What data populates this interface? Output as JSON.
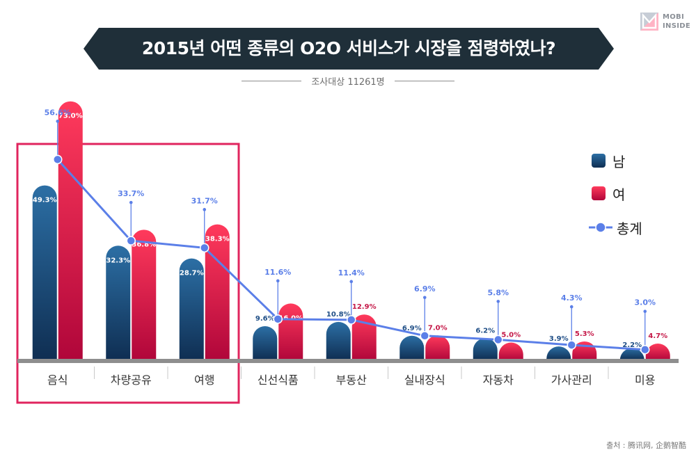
{
  "title": "2015년 어떤 종류의 O2O 서비스가 시장을 점령하였나?",
  "subtitle": "조사대상 11261명",
  "logo": {
    "line1": "MOBI",
    "line2": "INSIDE"
  },
  "source": "출처 : 腾讯网, 企鹅智酷",
  "colors": {
    "male_top": "#2c6fa5",
    "male_bottom": "#0f2e52",
    "female_top": "#ff3a5c",
    "female_bottom": "#b0063a",
    "total": "#5b7fe8",
    "highlight": "#e0245e",
    "male_label": "#1f4e86",
    "female_label": "#c41646"
  },
  "chart_data": {
    "type": "bar",
    "title": "2015년 어떤 종류의 O2O 서비스가 시장을 점령하였나?",
    "subtitle": "조사대상 11261명",
    "categories": [
      "음식",
      "차량공유",
      "여행",
      "신선식품",
      "부동산",
      "실내장식",
      "자동차",
      "가사관리",
      "미용"
    ],
    "series": [
      {
        "name": "남",
        "values": [
          49.3,
          32.3,
          28.7,
          9.6,
          10.8,
          6.9,
          6.2,
          3.9,
          2.2
        ],
        "labels": [
          "49.3%",
          "32.3%",
          "28.7%",
          "9.6%",
          "10.8%",
          "6.9%",
          "6.2%",
          "3.9%",
          "2.2%"
        ]
      },
      {
        "name": "여",
        "values": [
          73.0,
          36.8,
          38.3,
          16.0,
          12.9,
          7.0,
          5.0,
          5.3,
          4.7
        ],
        "labels": [
          "73.0%",
          "36.8%",
          "38.3%",
          "16.0%",
          "12.9%",
          "7.0%",
          "5.0%",
          "5.3%",
          "4.7%"
        ]
      },
      {
        "name": "총계",
        "type": "line",
        "values": [
          56.6,
          33.7,
          31.7,
          11.6,
          11.4,
          6.9,
          5.8,
          4.3,
          3.0
        ],
        "labels": [
          "56.6%",
          "33.7%",
          "31.7%",
          "11.6%",
          "11.4%",
          "6.9%",
          "5.8%",
          "4.3%",
          "3.0%"
        ]
      }
    ],
    "highlighted_categories": [
      "음식",
      "차량공유",
      "여행"
    ],
    "ylim": [
      0,
      80
    ],
    "legend_position": "right",
    "grid": false
  }
}
